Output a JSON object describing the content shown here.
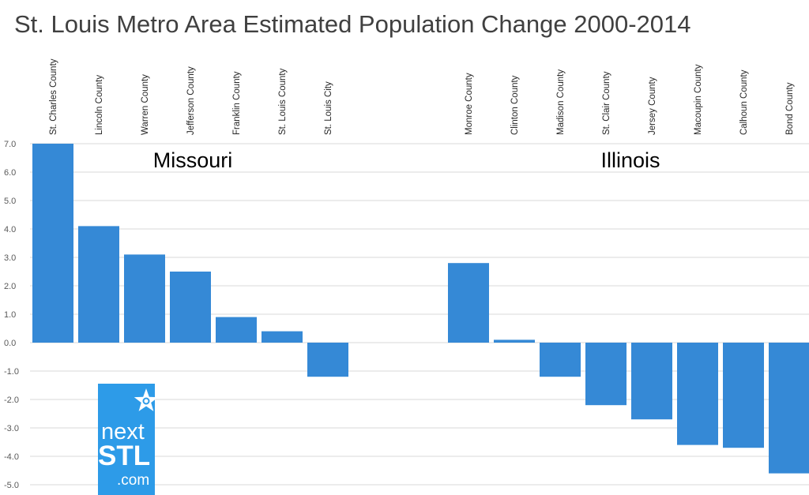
{
  "chart_data": {
    "type": "bar",
    "title": "St. Louis Metro Area Estimated Population Change 2000-2014",
    "xlabel": "",
    "ylabel": "",
    "ylim": [
      -5.0,
      7.0
    ],
    "yticks": [
      "7.0",
      "6.0",
      "5.0",
      "4.0",
      "3.0",
      "2.0",
      "1.0",
      "0.0",
      "-1.0",
      "-2.0",
      "-3.0",
      "-4.0",
      "-5.0"
    ],
    "grid": true,
    "legend": "none",
    "bar_color": "#3589d6",
    "groups": [
      {
        "name": "Missouri",
        "categories": [
          "St. Charles County",
          "Lincoln County",
          "Warren County",
          "Jefferson County",
          "Franklin County",
          "St. Louis County",
          "St. Louis City"
        ],
        "values": [
          7.0,
          4.1,
          3.1,
          2.5,
          0.9,
          0.4,
          -1.2
        ]
      },
      {
        "name": "Illinois",
        "categories": [
          "Monroe County",
          "Clinton County",
          "Madison County",
          "St. Clair County",
          "Jersey County",
          "Macoupin County",
          "Calhoun County",
          "Bond County"
        ],
        "values": [
          2.8,
          0.1,
          -1.2,
          -2.2,
          -2.7,
          -3.6,
          -3.7,
          -4.6
        ]
      }
    ]
  },
  "logo": {
    "line1": "next",
    "line2": "STL",
    "line3": ".com",
    "icon": "star-icon",
    "background": "#2d9be8"
  }
}
